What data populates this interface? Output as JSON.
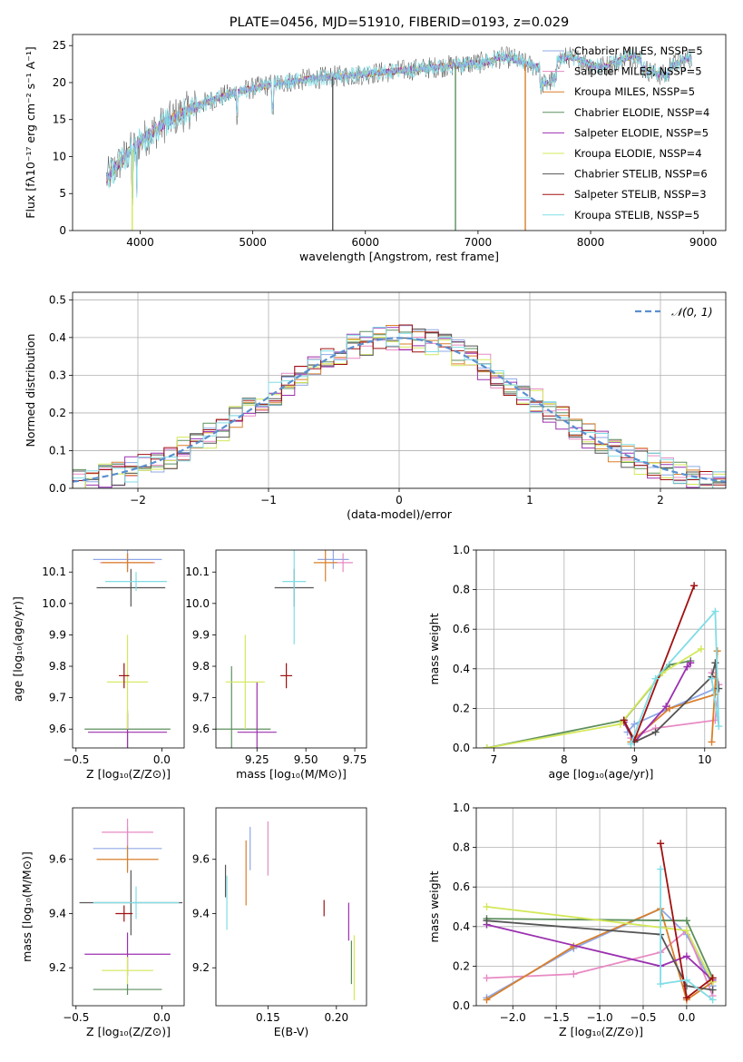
{
  "colors": {
    "chabrier_miles": "#8fa8e6",
    "salpeter_miles": "#e78ac3",
    "kroupa_miles": "#d97f2a",
    "chabrier_elodie": "#5d8f5d",
    "salpeter_elodie": "#9b30b0",
    "kroupa_elodie": "#d4e85a",
    "chabrier_stelib": "#555555",
    "salpeter_stelib": "#a01010",
    "kroupa_stelib": "#80dde6",
    "normal": "#5a8fd0"
  },
  "chart_data": [
    {
      "id": "spectrum",
      "type": "line",
      "title": "PLATE=0456, MJD=51910, FIBERID=0193, z=0.029",
      "xlabel": "wavelength [Angstrom, rest frame]",
      "ylabel": "Flux [fλ10⁻¹⁷ erg cm⁻² s⁻¹ A⁻¹]",
      "xlim": [
        3400,
        9200
      ],
      "ylim": [
        0,
        26.5
      ],
      "xticks": [
        4000,
        5000,
        6000,
        7000,
        8000,
        9000
      ],
      "yticks": [
        0,
        5,
        10,
        15,
        20,
        25
      ],
      "legend_position": "right",
      "legend": [
        {
          "label": "Chabrier MILES, NSSP=5",
          "color_key": "chabrier_miles"
        },
        {
          "label": "Salpeter MILES, NSSP=5",
          "color_key": "salpeter_miles"
        },
        {
          "label": "Kroupa MILES, NSSP=5",
          "color_key": "kroupa_miles"
        },
        {
          "label": "Chabrier ELODIE, NSSP=4",
          "color_key": "chabrier_elodie"
        },
        {
          "label": "Salpeter ELODIE, NSSP=5",
          "color_key": "salpeter_elodie"
        },
        {
          "label": "Kroupa ELODIE, NSSP=4",
          "color_key": "kroupa_elodie"
        },
        {
          "label": "Chabrier STELIB, NSSP=6",
          "color_key": "chabrier_stelib"
        },
        {
          "label": "Salpeter STELIB, NSSP=3",
          "color_key": "salpeter_stelib"
        },
        {
          "label": "Kroupa STELIB, NSSP=5",
          "color_key": "kroupa_stelib"
        }
      ],
      "wavelength_range": [
        3700,
        8900
      ],
      "dips": [
        [
          3930,
          0
        ],
        [
          5710,
          0
        ],
        [
          6800,
          0
        ],
        [
          7420,
          0
        ]
      ]
    },
    {
      "id": "residuals",
      "type": "histogram",
      "xlabel": "(data-model)/error",
      "ylabel": "Normed distribution",
      "xlim": [
        -2.5,
        2.5
      ],
      "ylim": [
        0,
        0.52
      ],
      "xticks": [
        -2,
        -1,
        0,
        1,
        2
      ],
      "yticks": [
        0.0,
        0.1,
        0.2,
        0.3,
        0.4,
        0.5
      ],
      "grid": true,
      "legend": [
        {
          "label": "𝒩(0, 1)",
          "color_key": "normal"
        }
      ],
      "legend_position": "top-right"
    },
    {
      "id": "age_vs_Z",
      "type": "errorbar",
      "xlabel": "Z [log₁₀(Z/Z⊙)]",
      "ylabel": "age  [log₁₀(age/yr)]",
      "xlim": [
        -0.52,
        0.13
      ],
      "ylim": [
        9.54,
        10.17
      ],
      "xticks": [
        -0.5,
        0.0
      ],
      "yticks": [
        9.6,
        9.7,
        9.8,
        9.9,
        10.0,
        10.1
      ],
      "points": [
        {
          "c": "chabrier_miles",
          "x": -0.2,
          "xe": 0.2,
          "y": 10.14,
          "ye": 0.03
        },
        {
          "c": "salpeter_miles",
          "x": -0.2,
          "xe": 0.16,
          "y": 10.13,
          "ye": 0.03
        },
        {
          "c": "kroupa_miles",
          "x": -0.2,
          "xe": 0.15,
          "y": 10.13,
          "ye": 0.03
        },
        {
          "c": "chabrier_elodie",
          "x": -0.2,
          "xe": 0.25,
          "y": 9.6,
          "ye": 0.06
        },
        {
          "c": "salpeter_elodie",
          "x": -0.2,
          "xe": 0.23,
          "y": 9.59,
          "ye": 0.06
        },
        {
          "c": "kroupa_elodie",
          "x": -0.2,
          "xe": 0.12,
          "y": 9.75,
          "ye": 0.15
        },
        {
          "c": "chabrier_stelib",
          "x": -0.18,
          "xe": 0.2,
          "y": 10.05,
          "ye": 0.06
        },
        {
          "c": "salpeter_stelib",
          "x": -0.22,
          "xe": 0.03,
          "y": 9.77,
          "ye": 0.04
        },
        {
          "c": "kroupa_stelib",
          "x": -0.15,
          "xe": 0.18,
          "y": 10.07,
          "ye": 0.03
        }
      ]
    },
    {
      "id": "age_vs_mass",
      "type": "errorbar",
      "xlabel": "mass [log₁₀(M/M⊙)]",
      "ylabel": "",
      "xlim": [
        9.04,
        9.81
      ],
      "ylim": [
        9.54,
        10.17
      ],
      "xticks": [
        9.25,
        9.5,
        9.75
      ],
      "yticks": [
        9.6,
        9.7,
        9.8,
        9.9,
        10.0,
        10.1
      ],
      "points": [
        {
          "c": "chabrier_miles",
          "x": 9.64,
          "xe": 0.08,
          "y": 10.14,
          "ye": 0.03
        },
        {
          "c": "salpeter_miles",
          "x": 9.69,
          "xe": 0.05,
          "y": 10.13,
          "ye": 0.03
        },
        {
          "c": "kroupa_miles",
          "x": 9.6,
          "xe": 0.06,
          "y": 10.13,
          "ye": 0.06
        },
        {
          "c": "chabrier_elodie",
          "x": 9.12,
          "xe": 0.2,
          "y": 9.6,
          "ye": 0.2
        },
        {
          "c": "salpeter_elodie",
          "x": 9.25,
          "xe": 0.1,
          "y": 9.59,
          "ye": 0.16
        },
        {
          "c": "kroupa_elodie",
          "x": 9.19,
          "xe": 0.1,
          "y": 9.75,
          "ye": 0.15
        },
        {
          "c": "chabrier_stelib",
          "x": 9.44,
          "xe": 0.1,
          "y": 10.05,
          "ye": 0.06
        },
        {
          "c": "salpeter_stelib",
          "x": 9.4,
          "xe": 0.03,
          "y": 9.77,
          "ye": 0.04
        },
        {
          "c": "kroupa_stelib",
          "x": 9.44,
          "xe": 0.06,
          "y": 10.07,
          "ye": 0.2
        }
      ]
    },
    {
      "id": "weight_vs_age",
      "type": "line",
      "xlabel": "age  [log₁₀(age/yr)]",
      "ylabel": "mass weight",
      "xlim": [
        6.75,
        10.3
      ],
      "ylim": [
        0,
        1.0
      ],
      "xticks": [
        7,
        8,
        9,
        10
      ],
      "yticks": [
        0.0,
        0.2,
        0.4,
        0.6,
        0.8,
        1.0
      ],
      "grid": true,
      "series": [
        {
          "c": "chabrier_miles",
          "x": [
            8.9,
            9.0,
            9.5,
            10.15,
            10.18
          ],
          "y": [
            0.08,
            0.12,
            0.2,
            0.3,
            0.3
          ]
        },
        {
          "c": "salpeter_miles",
          "x": [
            8.95,
            9.3,
            10.15,
            10.2,
            10.1
          ],
          "y": [
            0.05,
            0.1,
            0.14,
            0.32,
            0.38
          ]
        },
        {
          "c": "kroupa_miles",
          "x": [
            8.95,
            9.5,
            10.15,
            10.18,
            10.1
          ],
          "y": [
            0.03,
            0.2,
            0.27,
            0.49,
            0.03
          ]
        },
        {
          "c": "chabrier_elodie",
          "x": [
            6.9,
            8.85,
            9.5,
            9.8
          ],
          "y": [
            0.0,
            0.14,
            0.42,
            0.44
          ]
        },
        {
          "c": "salpeter_elodie",
          "x": [
            8.85,
            9.0,
            9.45,
            9.75,
            9.8
          ],
          "y": [
            0.13,
            0.03,
            0.21,
            0.41,
            0.43
          ]
        },
        {
          "c": "kroupa_elodie",
          "x": [
            6.9,
            8.8,
            9.4,
            9.95
          ],
          "y": [
            0.0,
            0.12,
            0.38,
            0.5
          ]
        },
        {
          "c": "chabrier_stelib",
          "x": [
            8.85,
            9.0,
            9.3,
            10.1,
            10.15,
            10.2
          ],
          "y": [
            0.14,
            0.03,
            0.08,
            0.36,
            0.43,
            0.3
          ]
        },
        {
          "c": "salpeter_stelib",
          "x": [
            8.85,
            9.0,
            9.85
          ],
          "y": [
            0.14,
            0.04,
            0.82
          ]
        },
        {
          "c": "kroupa_stelib",
          "x": [
            8.95,
            9.3,
            10.15,
            10.2,
            10.1
          ],
          "y": [
            0.02,
            0.35,
            0.69,
            0.11,
            0.35
          ]
        }
      ]
    },
    {
      "id": "mass_vs_Z",
      "type": "errorbar",
      "xlabel": "Z [log₁₀(Z/Z⊙)]",
      "ylabel": "mass [log₁₀(M/M⊙)]",
      "xlim": [
        -0.52,
        0.13
      ],
      "ylim": [
        9.06,
        9.79
      ],
      "xticks": [
        -0.5,
        0.0
      ],
      "yticks": [
        9.2,
        9.4,
        9.6
      ],
      "points": [
        {
          "c": "chabrier_miles",
          "x": -0.2,
          "xe": 0.2,
          "y": 9.64,
          "ye": 0.08
        },
        {
          "c": "salpeter_miles",
          "x": -0.2,
          "xe": 0.15,
          "y": 9.7,
          "ye": 0.05
        },
        {
          "c": "kroupa_miles",
          "x": -0.2,
          "xe": 0.18,
          "y": 9.6,
          "ye": 0.05
        },
        {
          "c": "chabrier_elodie",
          "x": -0.2,
          "xe": 0.2,
          "y": 9.12,
          "ye": 0.02
        },
        {
          "c": "salpeter_elodie",
          "x": -0.2,
          "xe": 0.25,
          "y": 9.25,
          "ye": 0.08
        },
        {
          "c": "kroupa_elodie",
          "x": -0.2,
          "xe": 0.15,
          "y": 9.19,
          "ye": 0.05
        },
        {
          "c": "chabrier_stelib",
          "x": -0.18,
          "xe": 0.3,
          "y": 9.44,
          "ye": 0.12
        },
        {
          "c": "salpeter_stelib",
          "x": -0.22,
          "xe": 0.05,
          "y": 9.4,
          "ye": 0.03
        },
        {
          "c": "kroupa_stelib",
          "x": -0.15,
          "xe": 0.25,
          "y": 9.44,
          "ye": 0.06
        }
      ]
    },
    {
      "id": "mass_vs_ebv",
      "type": "errorbar",
      "xlabel": "E(B-V)",
      "ylabel": "",
      "xlim": [
        0.112,
        0.222
      ],
      "ylim": [
        9.06,
        9.79
      ],
      "xticks": [
        0.15,
        0.2
      ],
      "yticks": [
        9.2,
        9.4,
        9.6
      ],
      "points": [
        {
          "c": "chabrier_miles",
          "x": 0.137,
          "xe": 0.0,
          "y": 9.64,
          "ye": 0.08
        },
        {
          "c": "salpeter_miles",
          "x": 0.15,
          "xe": 0.0,
          "y": 9.64,
          "ye": 0.1
        },
        {
          "c": "kroupa_miles",
          "x": 0.134,
          "xe": 0.0,
          "y": 9.55,
          "ye": 0.12
        },
        {
          "c": "chabrier_elodie",
          "x": 0.211,
          "xe": 0.0,
          "y": 9.22,
          "ye": 0.08
        },
        {
          "c": "salpeter_elodie",
          "x": 0.209,
          "xe": 0.0,
          "y": 9.37,
          "ye": 0.07
        },
        {
          "c": "kroupa_elodie",
          "x": 0.213,
          "xe": 0.0,
          "y": 9.2,
          "ye": 0.12
        },
        {
          "c": "chabrier_stelib",
          "x": 0.119,
          "xe": 0.0,
          "y": 9.52,
          "ye": 0.06
        },
        {
          "c": "salpeter_stelib",
          "x": 0.191,
          "xe": 0.0,
          "y": 9.42,
          "ye": 0.03
        },
        {
          "c": "kroupa_stelib",
          "x": 0.12,
          "xe": 0.0,
          "y": 9.44,
          "ye": 0.1
        }
      ]
    },
    {
      "id": "weight_vs_Z",
      "type": "line",
      "xlabel": "Z [log₁₀(Z/Z⊙)]",
      "ylabel": "mass weight",
      "xlim": [
        -2.42,
        0.45
      ],
      "ylim": [
        0,
        1.0
      ],
      "xticks": [
        -2.0,
        -1.5,
        -1.0,
        -0.5,
        0.0
      ],
      "yticks": [
        0.0,
        0.2,
        0.4,
        0.6,
        0.8,
        1.0
      ],
      "grid": true,
      "series": [
        {
          "c": "chabrier_miles",
          "x": [
            -2.3,
            -1.3,
            -0.3,
            0.0,
            0.3
          ],
          "y": [
            0.04,
            0.29,
            0.49,
            0.36,
            0.1
          ]
        },
        {
          "c": "salpeter_miles",
          "x": [
            -2.3,
            -1.3,
            -0.3,
            0.0,
            0.3
          ],
          "y": [
            0.14,
            0.16,
            0.27,
            0.38,
            0.05
          ]
        },
        {
          "c": "kroupa_miles",
          "x": [
            -2.3,
            -1.3,
            -0.3,
            0.0,
            0.3
          ],
          "y": [
            0.03,
            0.3,
            0.49,
            0.03,
            0.12
          ]
        },
        {
          "c": "chabrier_elodie",
          "x": [
            -2.3,
            0.0,
            0.3
          ],
          "y": [
            0.44,
            0.43,
            0.14
          ]
        },
        {
          "c": "salpeter_elodie",
          "x": [
            -2.3,
            -0.3,
            0.0,
            0.3
          ],
          "y": [
            0.41,
            0.2,
            0.25,
            0.13
          ]
        },
        {
          "c": "kroupa_elodie",
          "x": [
            -2.3,
            0.0,
            0.3
          ],
          "y": [
            0.5,
            0.38,
            0.12
          ]
        },
        {
          "c": "chabrier_stelib",
          "x": [
            -2.3,
            -0.3,
            0.0,
            0.3
          ],
          "y": [
            0.43,
            0.36,
            0.1,
            0.08
          ]
        },
        {
          "c": "salpeter_stelib",
          "x": [
            -0.3,
            0.0,
            0.3
          ],
          "y": [
            0.82,
            0.04,
            0.14
          ]
        },
        {
          "c": "kroupa_stelib",
          "x": [
            -0.3,
            -0.3,
            0.0,
            0.3
          ],
          "y": [
            0.69,
            0.11,
            0.13,
            0.03
          ]
        }
      ]
    }
  ]
}
